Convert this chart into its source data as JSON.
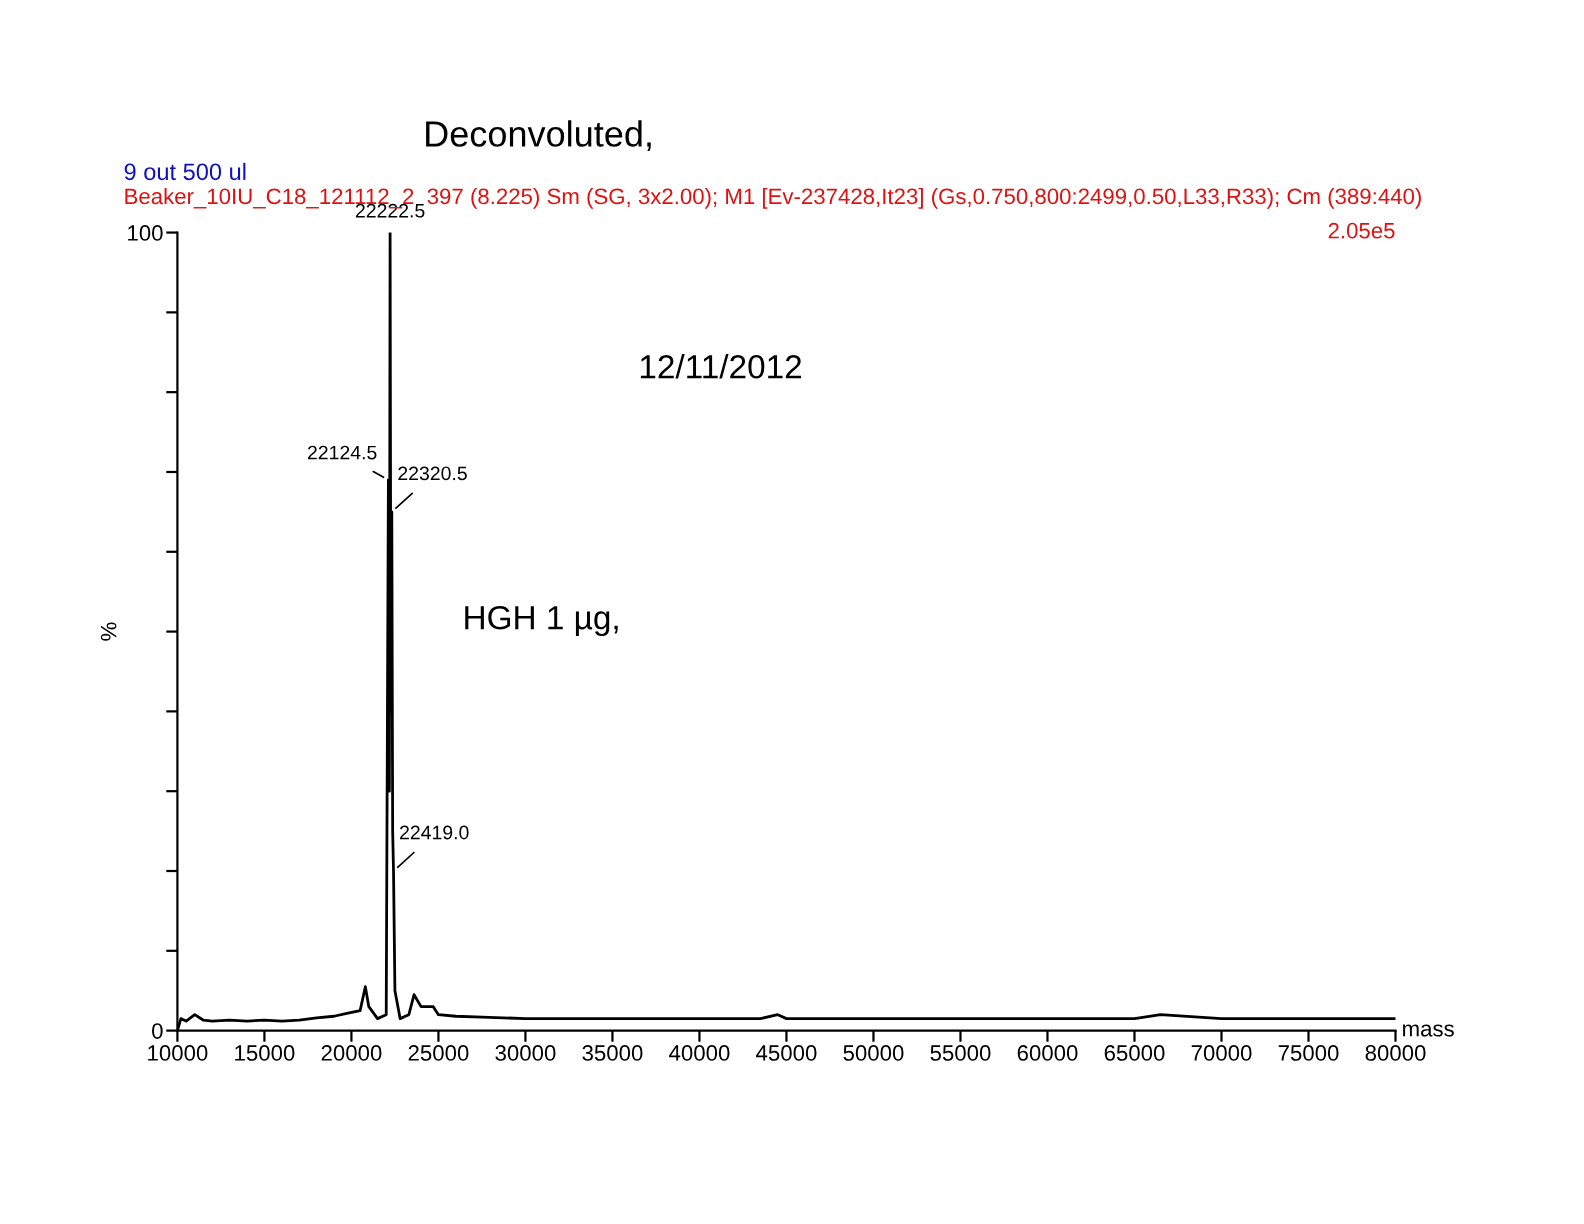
{
  "chart_data": {
    "type": "line",
    "title": "Deconvoluted,",
    "subtitle": "9 out 500 ul",
    "xlabel": "mass",
    "ylabel": "%",
    "x": [
      10000,
      10200,
      10500,
      11000,
      11500,
      12000,
      13000,
      14000,
      15000,
      16000,
      17000,
      18000,
      19000,
      19800,
      20500,
      20800,
      21000,
      21500,
      22000,
      22124.5,
      22180,
      22222.5,
      22270,
      22320.5,
      22370,
      22419.0,
      22500,
      22800,
      23300,
      23600,
      24000,
      24700,
      25000,
      26000,
      27500,
      30000,
      35000,
      40000,
      43500,
      44500,
      45000,
      50000,
      55000,
      60000,
      65000,
      66500,
      70000,
      75000,
      80000
    ],
    "series": [
      {
        "color": "#000000",
        "values": [
          0,
          1.5,
          1.2,
          2,
          1.3,
          1.2,
          1.3,
          1.2,
          1.3,
          1.2,
          1.3,
          1.6,
          1.8,
          2.2,
          2.5,
          5.5,
          3,
          1.5,
          2,
          69,
          30,
          100,
          40,
          65,
          25,
          20,
          5,
          1.5,
          2,
          4.5,
          3,
          3,
          2,
          1.8,
          1.7,
          1.5,
          1.5,
          1.5,
          1.5,
          2,
          1.5,
          1.5,
          1.5,
          1.5,
          1.5,
          2,
          1.5,
          1.5,
          1.5
        ]
      }
    ],
    "xlim": [
      10000,
      80000
    ],
    "xticks": [
      10000,
      15000,
      20000,
      25000,
      30000,
      35000,
      40000,
      45000,
      50000,
      55000,
      60000,
      65000,
      70000,
      75000,
      80000
    ],
    "ylim": [
      0,
      100
    ],
    "yticks": [
      0,
      {
        "value": 10,
        "label": null
      },
      {
        "value": 20,
        "label": null
      },
      {
        "value": 30,
        "label": null
      },
      {
        "value": 40,
        "label": null
      },
      {
        "value": 50,
        "label": null
      },
      {
        "value": 60,
        "label": null
      },
      {
        "value": 70,
        "label": null
      },
      {
        "value": 80,
        "label": null
      },
      {
        "value": 90,
        "label": null
      },
      100
    ],
    "grid": false,
    "marker": "none",
    "line_style": "solid",
    "annotations": [
      "Beaker_10IU_C18_121112_2  397 (8.225) Sm (SG, 3x2.00); M1 [Ev-237428,It23] (Gs,0.750,800:2499,0.50,L33,R33); Cm (389:440)",
      "2.05e5",
      "12/11/2012",
      "HGH 1 µg,",
      {
        "text": "22222.5",
        "x": 22222.5,
        "y": 100
      },
      {
        "text": "22124.5",
        "x": 22124.5,
        "y": 69
      },
      {
        "text": "22320.5",
        "x": 22320.5,
        "y": 65
      },
      {
        "text": "22419.0",
        "x": 22419.0,
        "y": 20
      }
    ]
  }
}
